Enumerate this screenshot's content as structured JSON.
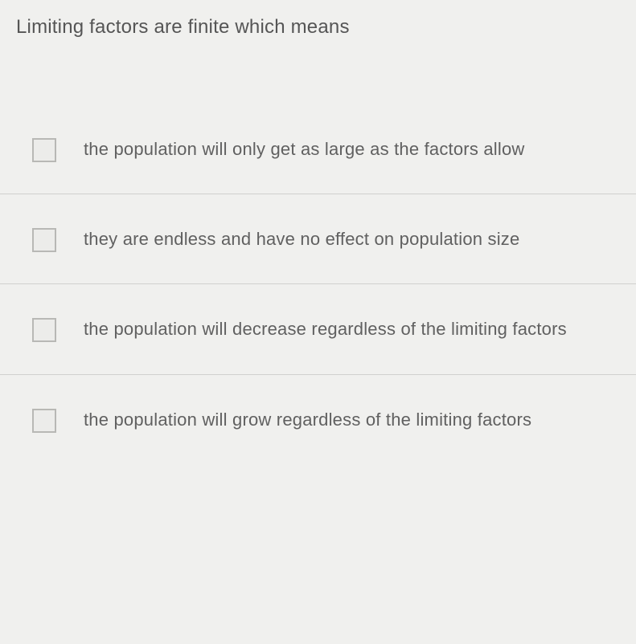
{
  "question": {
    "text": "Limiting factors are finite which means",
    "text_color": "#555555",
    "text_fontsize": 24,
    "background_color": "#f0f0ee"
  },
  "options": [
    {
      "label": "the population will only get as large as the factors allow",
      "checked": false
    },
    {
      "label": "they are endless and have no effect on population size",
      "checked": false
    },
    {
      "label": "the population will decrease regardless of the limiting factors",
      "checked": false
    },
    {
      "label": "the population will grow regardless of the limiting factors",
      "checked": false
    }
  ],
  "styling": {
    "option_text_color": "#606060",
    "option_fontsize": 22,
    "checkbox_border_color": "#b8b8b5",
    "checkbox_size": 30,
    "divider_color": "#d0d0ce"
  }
}
